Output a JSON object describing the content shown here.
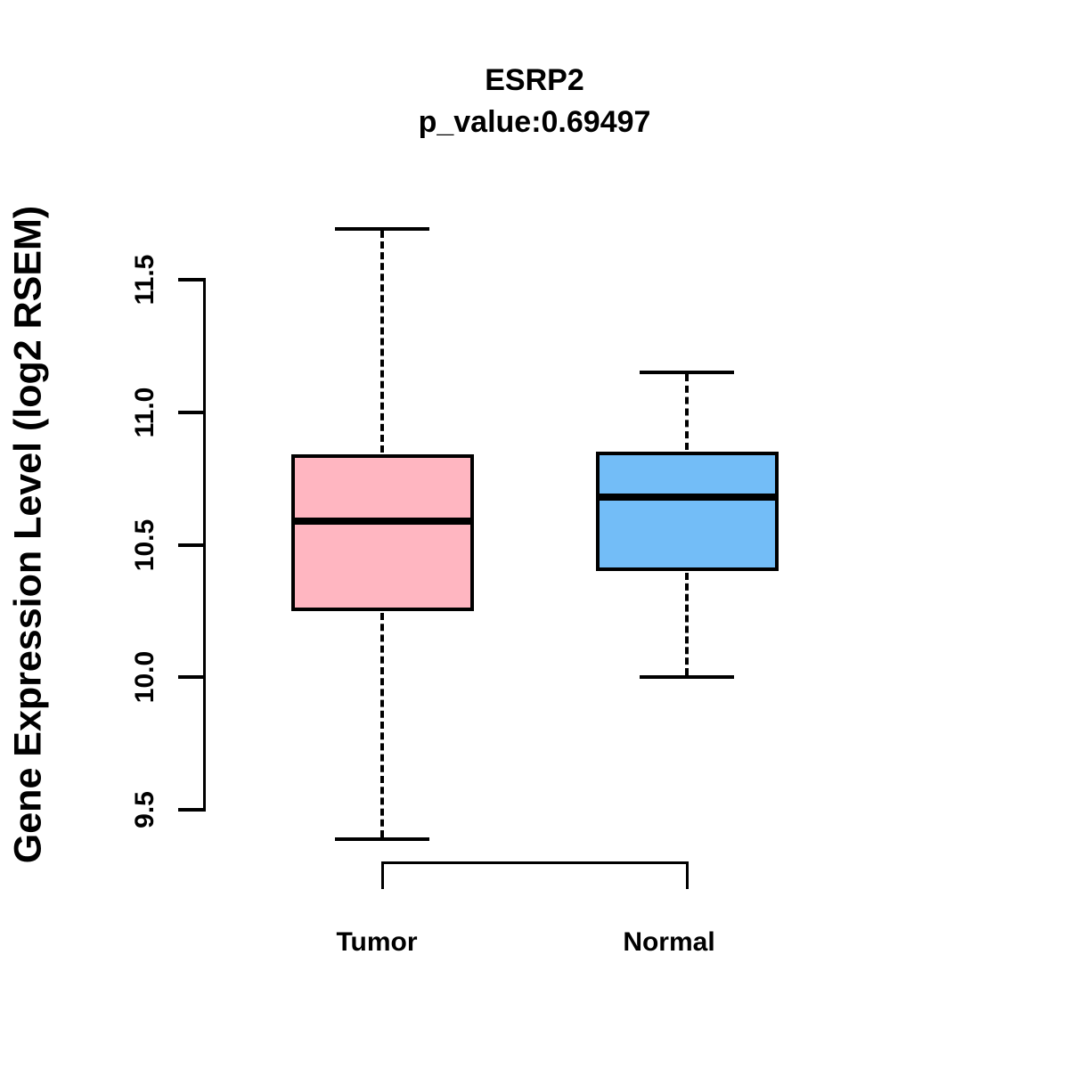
{
  "title": "ESRP2",
  "subtitle": "p_value:0.69497",
  "chart_data": {
    "type": "boxplot",
    "title": "ESRP2",
    "subtitle": "p_value:0.69497",
    "xlabel": "",
    "ylabel": "Gene Expression Level (log2 RSEM)",
    "ylim": [
      9.5,
      11.5
    ],
    "yticks": [
      9.5,
      10.0,
      10.5,
      11.0,
      11.5
    ],
    "ytick_labels": [
      "9.5",
      "10.0",
      "10.5",
      "11.0",
      "11.5"
    ],
    "grid": false,
    "legend": "none",
    "groups": [
      {
        "label": "Tumor",
        "fill_color": "#FFB6C1",
        "lower_whisker": 9.39,
        "q1": 10.25,
        "median": 10.59,
        "q3": 10.84,
        "upper_whisker": 11.69
      },
      {
        "label": "Normal",
        "fill_color": "#73BDF7",
        "lower_whisker": 10.0,
        "q1": 10.4,
        "median": 10.68,
        "q3": 10.85,
        "upper_whisker": 11.15
      }
    ],
    "line_color": "#000000"
  }
}
